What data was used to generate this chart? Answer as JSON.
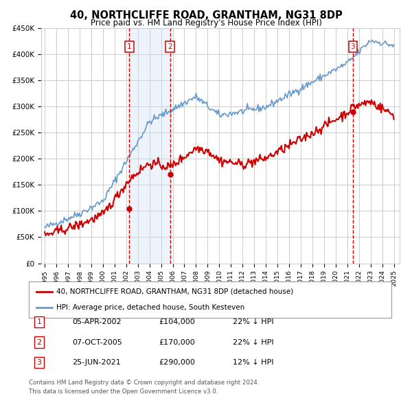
{
  "title": "40, NORTHCLIFFE ROAD, GRANTHAM, NG31 8DP",
  "subtitle": "Price paid vs. HM Land Registry's House Price Index (HPI)",
  "legend_property": "40, NORTHCLIFFE ROAD, GRANTHAM, NG31 8DP (detached house)",
  "legend_hpi": "HPI: Average price, detached house, South Kesteven",
  "footer1": "Contains HM Land Registry data © Crown copyright and database right 2024.",
  "footer2": "This data is licensed under the Open Government Licence v3.0.",
  "sales": [
    {
      "num": 1,
      "date": "05-APR-2002",
      "price": 104000,
      "pct": "22%",
      "dir": "↓",
      "year": 2002.27
    },
    {
      "num": 2,
      "date": "07-OCT-2005",
      "price": 170000,
      "pct": "22%",
      "dir": "↓",
      "year": 2005.77
    },
    {
      "num": 3,
      "date": "25-JUN-2021",
      "price": 290000,
      "pct": "12%",
      "dir": "↓",
      "year": 2021.48
    }
  ],
  "property_color": "#cc0000",
  "hpi_color": "#6699cc",
  "shade_color": "#ccddf5",
  "marker_box_color": "#cc0000",
  "vline_color": "#cc0000",
  "ylim": [
    0,
    450000
  ],
  "xlim_start": 1994.7,
  "xlim_end": 2025.5,
  "background_color": "#ffffff",
  "grid_color": "#cccccc"
}
